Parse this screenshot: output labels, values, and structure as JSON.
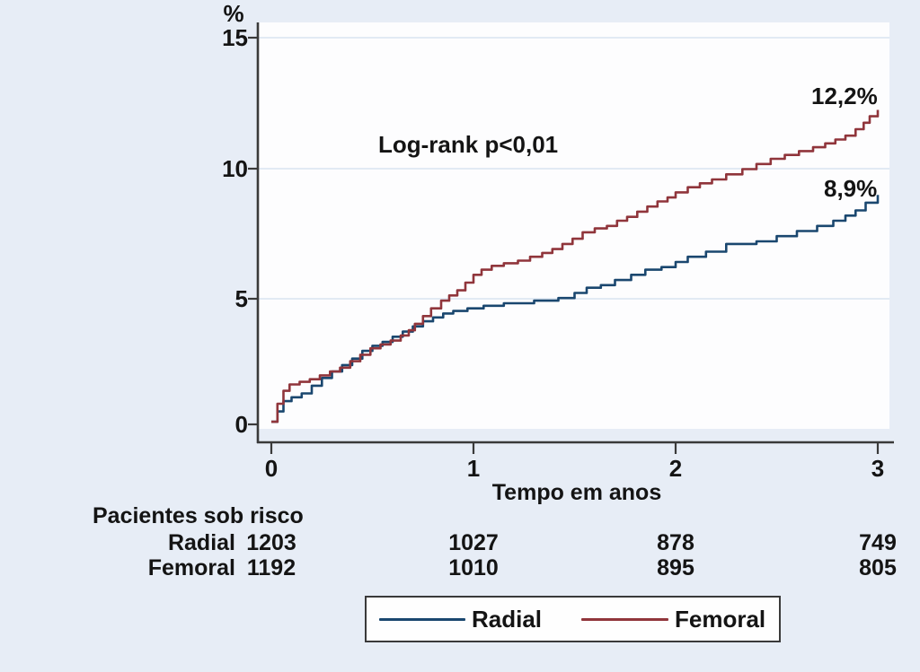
{
  "colors": {
    "background": "#e7edf6",
    "plot_background": "#fdfdfe",
    "axis": "#3a3a3a",
    "gridline": "#d9e4f1",
    "navy": "#1a476f",
    "maroon": "#90353b"
  },
  "chart_data": {
    "type": "line",
    "step": true,
    "y_axis_title": "%",
    "xlabel": "Tempo em anos",
    "annotation": "Log-rank p<0,01",
    "xlim": [
      0,
      3
    ],
    "ylim": [
      0,
      15
    ],
    "x_ticks": [
      "0",
      "1",
      "2",
      "3"
    ],
    "y_ticks": [
      "15",
      "10",
      "5",
      "0"
    ],
    "grid": "horizontal gridlines at 5, 10, 15",
    "legend_position": "bottom-center",
    "series": [
      {
        "name": "Radial",
        "color": "#1a476f",
        "end_label": "8,9%",
        "points": [
          [
            0,
            0.1
          ],
          [
            0.03,
            0.5
          ],
          [
            0.06,
            0.9
          ],
          [
            0.1,
            1.05
          ],
          [
            0.15,
            1.2
          ],
          [
            0.2,
            1.5
          ],
          [
            0.25,
            1.8
          ],
          [
            0.3,
            2.05
          ],
          [
            0.35,
            2.3
          ],
          [
            0.4,
            2.55
          ],
          [
            0.45,
            2.85
          ],
          [
            0.5,
            3.05
          ],
          [
            0.55,
            3.2
          ],
          [
            0.6,
            3.4
          ],
          [
            0.65,
            3.6
          ],
          [
            0.7,
            3.8
          ],
          [
            0.75,
            4.0
          ],
          [
            0.8,
            4.15
          ],
          [
            0.85,
            4.3
          ],
          [
            0.9,
            4.4
          ],
          [
            0.97,
            4.5
          ],
          [
            1.05,
            4.6
          ],
          [
            1.15,
            4.7
          ],
          [
            1.3,
            4.8
          ],
          [
            1.42,
            4.9
          ],
          [
            1.5,
            5.1
          ],
          [
            1.56,
            5.3
          ],
          [
            1.63,
            5.4
          ],
          [
            1.7,
            5.6
          ],
          [
            1.78,
            5.8
          ],
          [
            1.85,
            6.0
          ],
          [
            1.93,
            6.1
          ],
          [
            2.0,
            6.3
          ],
          [
            2.06,
            6.5
          ],
          [
            2.15,
            6.7
          ],
          [
            2.25,
            7.0
          ],
          [
            2.4,
            7.1
          ],
          [
            2.5,
            7.3
          ],
          [
            2.6,
            7.5
          ],
          [
            2.7,
            7.7
          ],
          [
            2.78,
            7.9
          ],
          [
            2.84,
            8.1
          ],
          [
            2.89,
            8.3
          ],
          [
            2.94,
            8.6
          ],
          [
            3.0,
            8.9
          ]
        ]
      },
      {
        "name": "Femoral",
        "color": "#90353b",
        "end_label": "12,2%",
        "points": [
          [
            0,
            0.1
          ],
          [
            0.03,
            0.8
          ],
          [
            0.06,
            1.3
          ],
          [
            0.09,
            1.55
          ],
          [
            0.14,
            1.65
          ],
          [
            0.19,
            1.75
          ],
          [
            0.24,
            1.9
          ],
          [
            0.29,
            2.05
          ],
          [
            0.34,
            2.2
          ],
          [
            0.39,
            2.45
          ],
          [
            0.44,
            2.7
          ],
          [
            0.49,
            2.95
          ],
          [
            0.54,
            3.1
          ],
          [
            0.59,
            3.25
          ],
          [
            0.64,
            3.45
          ],
          [
            0.68,
            3.65
          ],
          [
            0.71,
            3.9
          ],
          [
            0.75,
            4.2
          ],
          [
            0.79,
            4.5
          ],
          [
            0.84,
            4.8
          ],
          [
            0.88,
            5.0
          ],
          [
            0.92,
            5.2
          ],
          [
            0.96,
            5.5
          ],
          [
            1.0,
            5.8
          ],
          [
            1.04,
            6.0
          ],
          [
            1.09,
            6.15
          ],
          [
            1.15,
            6.25
          ],
          [
            1.22,
            6.35
          ],
          [
            1.28,
            6.5
          ],
          [
            1.34,
            6.65
          ],
          [
            1.39,
            6.8
          ],
          [
            1.44,
            7.0
          ],
          [
            1.49,
            7.2
          ],
          [
            1.54,
            7.45
          ],
          [
            1.6,
            7.6
          ],
          [
            1.66,
            7.7
          ],
          [
            1.71,
            7.9
          ],
          [
            1.76,
            8.05
          ],
          [
            1.81,
            8.25
          ],
          [
            1.86,
            8.45
          ],
          [
            1.91,
            8.65
          ],
          [
            1.96,
            8.8
          ],
          [
            2.0,
            9.0
          ],
          [
            2.06,
            9.2
          ],
          [
            2.12,
            9.35
          ],
          [
            2.18,
            9.5
          ],
          [
            2.25,
            9.7
          ],
          [
            2.33,
            9.9
          ],
          [
            2.4,
            10.1
          ],
          [
            2.47,
            10.3
          ],
          [
            2.54,
            10.45
          ],
          [
            2.61,
            10.6
          ],
          [
            2.68,
            10.75
          ],
          [
            2.74,
            10.9
          ],
          [
            2.79,
            11.05
          ],
          [
            2.84,
            11.2
          ],
          [
            2.89,
            11.45
          ],
          [
            2.93,
            11.7
          ],
          [
            2.96,
            11.95
          ],
          [
            3.0,
            12.2
          ]
        ]
      }
    ]
  },
  "risk_table": {
    "title": "Pacientes sob risco",
    "rows": [
      {
        "label": "Radial",
        "counts": [
          "1203",
          "1027",
          "878",
          "749"
        ]
      },
      {
        "label": "Femoral",
        "counts": [
          "1192",
          "1010",
          "895",
          "805"
        ]
      }
    ]
  },
  "legend": {
    "items": [
      {
        "label": "Radial",
        "color": "#1a476f"
      },
      {
        "label": "Femoral",
        "color": "#90353b"
      }
    ]
  }
}
